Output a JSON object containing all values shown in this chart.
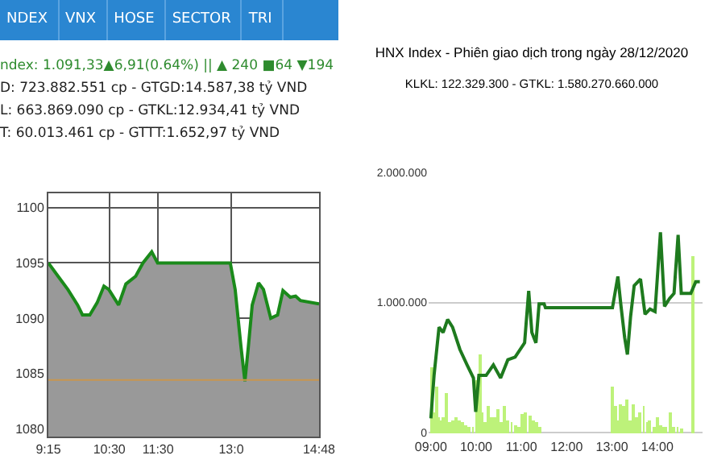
{
  "chart_data": [
    {
      "type": "area",
      "annotations": [
        "NDEX",
        "VNX",
        "HOSE",
        "SECTOR",
        "TRI",
        "ndex: 1.091,33▲6,91(0.64%) || ▲ 240 ■64 ▼194",
        "D: 723.882.551 cp - GTGD:14.587,38 tỷ VND",
        "L: 663.869.090 cp - GTKL:12.934,41 tỷ VND",
        "T: 60.013.461 cp - GTTT:1.652,97 tỷ VND"
      ],
      "x": [
        9.25,
        9.45,
        9.65,
        9.85,
        9.95,
        10.1,
        10.25,
        10.39,
        10.49,
        10.69,
        10.84,
        11.04,
        11.19,
        11.37,
        11.49,
        12.98,
        13.08,
        13.2,
        13.28,
        13.35,
        13.43,
        13.56,
        13.66,
        13.81,
        13.95,
        14.06,
        14.21,
        14.32,
        14.42,
        14.8
      ],
      "series": [
        {
          "color": "#1a8a1a",
          "values": [
            1095,
            1093.8,
            1092.6,
            1091.2,
            1090.3,
            1090.3,
            1091.4,
            1092.9,
            1092.6,
            1091.2,
            1093.1,
            1093.8,
            1095,
            1096,
            1095,
            1095,
            1092.6,
            1087.4,
            1084.3,
            1087.4,
            1091.2,
            1093.2,
            1092.6,
            1090,
            1090.3,
            1092.5,
            1091.9,
            1092,
            1091.6,
            1091.3
          ]
        }
      ],
      "xlim": [
        9.25,
        14.8
      ],
      "xticks": [
        {
          "value": 9.25,
          "label": "9:15"
        },
        {
          "value": 10.5,
          "label": "10:30"
        },
        {
          "value": 11.5,
          "label": "11:30"
        },
        {
          "value": 13,
          "label": "13:0"
        },
        {
          "value": 14.8,
          "label": "14:48"
        }
      ],
      "ylim": [
        1079.3,
        1101.3
      ],
      "yticks": [
        1080,
        1085,
        1090,
        1095,
        1100
      ],
      "ref_lines": [
        {
          "axis": "y",
          "value": 1084.42,
          "color": "#c89650"
        }
      ],
      "grid": true,
      "marker": "none",
      "line_style": "solid"
    },
    {
      "type": "bar",
      "title": "HNX Index - Phiên giao dịch trong ngày 28/12/2020",
      "subtitle": "KLKL: 122.329.300 - GTKL: 1.580.270.660.000",
      "series": [
        {
          "type": "bar",
          "color": "#bdf27a",
          "x": [
            9.02,
            9.07,
            9.12,
            9.18,
            9.23,
            9.28,
            9.35,
            9.42,
            9.48,
            9.55,
            9.62,
            9.7,
            9.78,
            9.85,
            9.93,
            10.02,
            10.08,
            10.14,
            10.2,
            10.26,
            10.33,
            10.4,
            10.47,
            10.54,
            10.62,
            10.7,
            10.78,
            10.86,
            10.94,
            11.02,
            11.1,
            11.18,
            11.26,
            11.34,
            11.42,
            13.01,
            13.07,
            13.13,
            13.19,
            13.26,
            13.33,
            13.4,
            13.48,
            13.55,
            13.62,
            13.7,
            13.77,
            13.84,
            13.92,
            14,
            14.07,
            14.14,
            14.2,
            14.28,
            14.36,
            14.45,
            14.55,
            14.78
          ],
          "values": [
            500000,
            150000,
            350000,
            120000,
            100000,
            120000,
            300000,
            80000,
            100000,
            120000,
            100000,
            80000,
            60000,
            50000,
            50000,
            400000,
            600000,
            150000,
            80000,
            200000,
            120000,
            120000,
            180000,
            80000,
            200000,
            100000,
            80000,
            60000,
            50000,
            140000,
            150000,
            130000,
            100000,
            80000,
            40000,
            350000,
            200000,
            100000,
            220000,
            200000,
            250000,
            100000,
            220000,
            120000,
            150000,
            200000,
            80000,
            100000,
            50000,
            120000,
            60000,
            40000,
            40000,
            150000,
            50000,
            40000,
            30000,
            1360000
          ]
        },
        {
          "type": "line",
          "color": "#1e7a1e",
          "x": [
            9,
            9.07,
            9.18,
            9.27,
            9.37,
            9.48,
            9.64,
            9.8,
            9.94,
            9.99,
            10.06,
            10.22,
            10.38,
            10.54,
            10.7,
            10.86,
            11.07,
            11.16,
            11.23,
            11.32,
            11.39,
            11.5,
            11.53,
            13.01,
            13.13,
            13.2,
            13.28,
            13.34,
            13.41,
            13.49,
            13.63,
            13.73,
            13.84,
            13.95,
            14.07,
            14.16,
            14.27,
            14.37,
            14.46,
            14.53,
            14.74,
            14.85,
            14.94
          ],
          "values": [
            110000,
            440000,
            810000,
            770000,
            870000,
            810000,
            640000,
            520000,
            420000,
            160000,
            440000,
            440000,
            520000,
            420000,
            560000,
            580000,
            690000,
            1090000,
            770000,
            690000,
            990000,
            990000,
            960000,
            960000,
            1200000,
            970000,
            730000,
            600000,
            890000,
            1130000,
            1180000,
            910000,
            950000,
            930000,
            1540000,
            970000,
            1030000,
            1070000,
            1520000,
            1070000,
            1070000,
            1160000,
            1160000
          ]
        }
      ],
      "xlim": [
        8.95,
        15
      ],
      "xticks": [
        {
          "value": 9,
          "label": "09:00"
        },
        {
          "value": 10,
          "label": "10:00"
        },
        {
          "value": 11,
          "label": "11:00"
        },
        {
          "value": 12,
          "label": "12:00"
        },
        {
          "value": 13,
          "label": "13:00"
        },
        {
          "value": 14,
          "label": "14:00"
        }
      ],
      "ylim": [
        -30000,
        2000000
      ],
      "yticks": [
        {
          "value": 0,
          "label": "0"
        },
        {
          "value": 1000000,
          "label": "1.000.000"
        },
        {
          "value": 2000000,
          "label": "2.000.000"
        }
      ],
      "grid": "y",
      "marker": "none",
      "line_style": "solid"
    }
  ]
}
